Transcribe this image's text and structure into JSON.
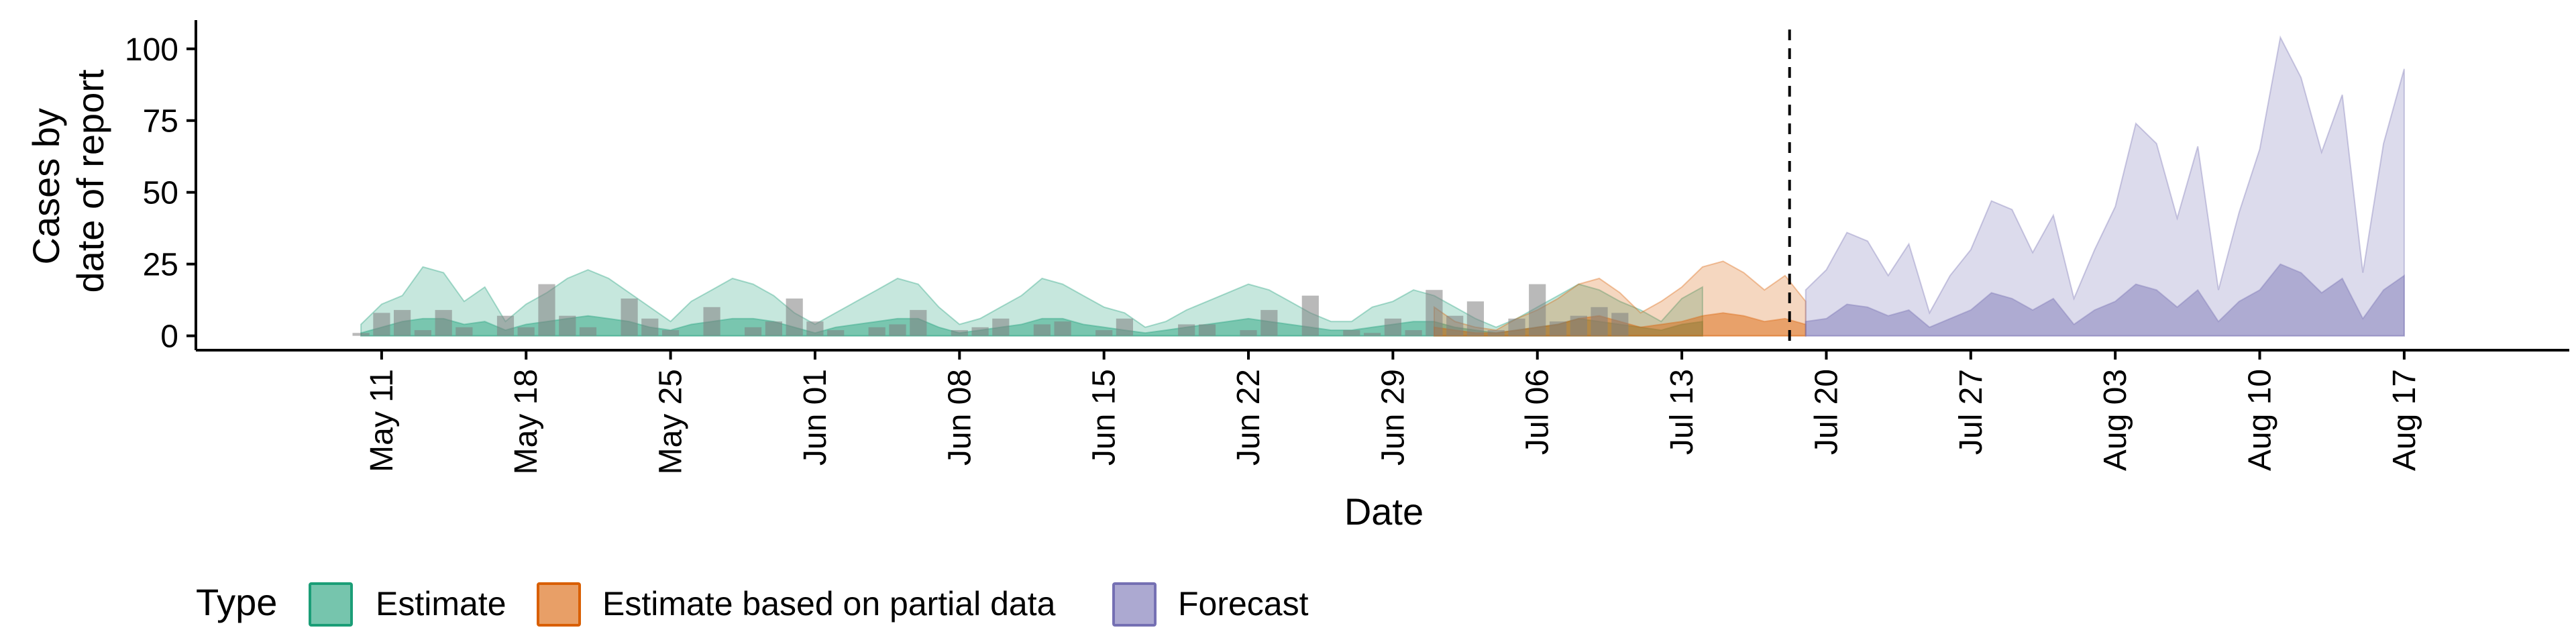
{
  "colors": {
    "estimate": "#1b9e77",
    "partial": "#d95f02",
    "forecast": "#7570b3",
    "bars": "#808080",
    "axis": "#000000"
  },
  "chart_data": {
    "type": "area",
    "xlabel": "Date",
    "ylabel_lines": [
      "Cases by",
      "date of report"
    ],
    "ylim": [
      -5,
      110
    ],
    "yticks": [
      0,
      25,
      50,
      75,
      100
    ],
    "xlim": [
      "2020-05-02",
      "2020-08-25"
    ],
    "xticks": [
      "2020-05-11",
      "2020-05-18",
      "2020-05-25",
      "2020-06-01",
      "2020-06-08",
      "2020-06-15",
      "2020-06-22",
      "2020-06-29",
      "2020-07-06",
      "2020-07-13",
      "2020-07-20",
      "2020-07-27",
      "2020-08-03",
      "2020-08-10",
      "2020-08-17"
    ],
    "xtick_labels": [
      "May 11",
      "May 18",
      "May 25",
      "Jun 01",
      "Jun 08",
      "Jun 15",
      "Jun 22",
      "Jun 29",
      "Jul 06",
      "Jul 13",
      "Jul 20",
      "Jul 27",
      "Aug 03",
      "Aug 10",
      "Aug 17"
    ],
    "forecast_date": "2020-07-19",
    "legend": {
      "title": "Type",
      "entries": [
        "Estimate",
        "Estimate based on partial data",
        "Forecast"
      ],
      "position": "bottom"
    },
    "series": [
      {
        "name": "Estimate",
        "start": "2020-05-10",
        "upper_outer": [
          4,
          11,
          14,
          24,
          22,
          12,
          17,
          5,
          11,
          15,
          20,
          23,
          20,
          15,
          10,
          5,
          12,
          16,
          20,
          18,
          14,
          8,
          4,
          8,
          12,
          16,
          20,
          18,
          10,
          4,
          6,
          10,
          14,
          20,
          18,
          14,
          10,
          8,
          3,
          5,
          9,
          12,
          15,
          18,
          16,
          12,
          8,
          5,
          5,
          10,
          12,
          16,
          14,
          10,
          6,
          3,
          6,
          10,
          14,
          18,
          16,
          12,
          9,
          5,
          13,
          17
        ],
        "upper_inner": [
          1,
          3,
          5,
          6,
          6,
          4,
          5,
          2,
          4,
          5,
          6,
          7,
          6,
          5,
          3,
          2,
          4,
          5,
          6,
          6,
          5,
          3,
          1,
          3,
          4,
          5,
          6,
          6,
          3,
          1,
          2,
          3,
          4,
          6,
          6,
          4,
          3,
          2,
          1,
          2,
          3,
          4,
          5,
          6,
          5,
          4,
          3,
          2,
          2,
          3,
          4,
          5,
          5,
          3,
          2,
          1,
          2,
          3,
          4,
          6,
          5,
          4,
          3,
          2,
          4,
          5
        ]
      },
      {
        "name": "Estimate based on partial data",
        "start": "2020-07-01",
        "upper_outer": [
          10,
          5,
          3,
          2,
          6,
          9,
          13,
          18,
          20,
          15,
          8,
          12,
          17,
          24,
          26,
          22,
          16,
          21,
          12
        ],
        "upper_inner": [
          3,
          2,
          1,
          1,
          2,
          3,
          4,
          6,
          7,
          5,
          3,
          4,
          5,
          7,
          8,
          7,
          5,
          6,
          4
        ]
      },
      {
        "name": "Forecast",
        "start": "2020-07-19",
        "upper_outer": [
          16,
          23,
          36,
          33,
          21,
          32,
          8,
          21,
          30,
          47,
          44,
          29,
          42,
          13,
          30,
          45,
          74,
          67,
          41,
          66,
          16,
          43,
          65,
          104,
          90,
          64,
          84,
          22,
          67,
          93
        ],
        "upper_inner": [
          5,
          6,
          11,
          10,
          7,
          9,
          3,
          6,
          9,
          15,
          13,
          9,
          13,
          4,
          9,
          12,
          18,
          16,
          10,
          16,
          5,
          12,
          16,
          25,
          22,
          15,
          20,
          6,
          16,
          21
        ]
      }
    ],
    "reported_cases": {
      "start": "2020-05-10",
      "values": [
        1,
        8,
        9,
        2,
        9,
        3,
        0,
        7,
        3,
        18,
        7,
        3,
        0,
        13,
        6,
        2,
        0,
        10,
        0,
        3,
        5,
        13,
        5,
        2,
        0,
        3,
        4,
        9,
        0,
        2,
        3,
        6,
        0,
        4,
        5,
        0,
        2,
        6,
        0,
        0,
        4,
        4,
        0,
        2,
        9,
        0,
        14,
        0,
        2,
        1,
        6,
        2,
        16,
        7,
        12,
        2,
        6,
        18,
        5,
        7,
        10,
        8
      ]
    }
  }
}
